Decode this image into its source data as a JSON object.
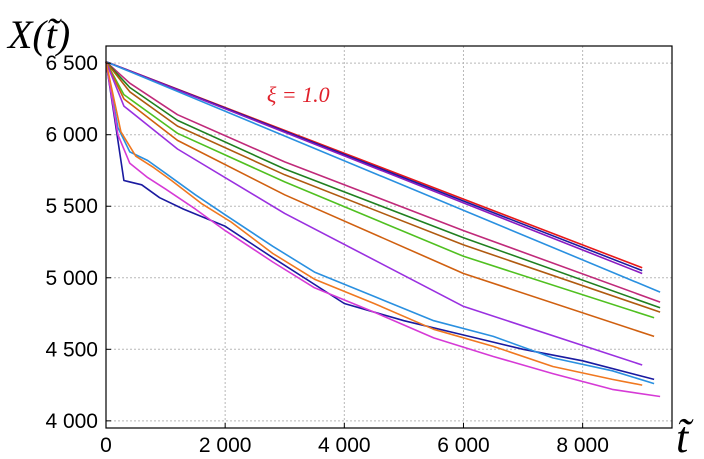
{
  "chart_data": {
    "type": "line",
    "title": "",
    "xlabel": "t̃",
    "ylabel": "X(t̃)",
    "xlim": [
      0,
      9500
    ],
    "ylim": [
      3950,
      6620
    ],
    "x_ticks": [
      0,
      2000,
      4000,
      6000,
      8000
    ],
    "x_tick_labels": [
      "0",
      "2 000",
      "4 000",
      "6 000",
      "8 000"
    ],
    "y_ticks": [
      4000,
      4500,
      5000,
      5500,
      6000,
      6500
    ],
    "y_tick_labels": [
      "4 000",
      "4 500",
      "5 000",
      "5 500",
      "6 000",
      "6 500"
    ],
    "grid": true,
    "legend": "none",
    "annotations": [
      {
        "text": "ξ = 1.0",
        "x": 2700,
        "y": 6230,
        "color": "#e0202a"
      }
    ],
    "series": [
      {
        "color": "#e81818",
        "x": [
          0,
          9000
        ],
        "y": [
          6510,
          5070
        ]
      },
      {
        "color": "#1a1aa0",
        "x": [
          0,
          9000
        ],
        "y": [
          6510,
          5050
        ]
      },
      {
        "color": "#8a1ac0",
        "x": [
          0,
          9000
        ],
        "y": [
          6510,
          5030
        ]
      },
      {
        "color": "#2a90e0",
        "x": [
          0,
          9300
        ],
        "y": [
          6510,
          4900
        ]
      },
      {
        "color": "#c02a7a",
        "x": [
          0,
          400,
          1200,
          3000,
          6000,
          9300
        ],
        "y": [
          6510,
          6360,
          6140,
          5810,
          5330,
          4830
        ]
      },
      {
        "color": "#208020",
        "x": [
          0,
          400,
          1200,
          3000,
          6000,
          9300
        ],
        "y": [
          6510,
          6330,
          6100,
          5760,
          5280,
          4790
        ]
      },
      {
        "color": "#b05a10",
        "x": [
          0,
          400,
          1200,
          3000,
          6000,
          9300
        ],
        "y": [
          6510,
          6300,
          6060,
          5720,
          5230,
          4760
        ]
      },
      {
        "color": "#50c020",
        "x": [
          0,
          300,
          1200,
          3000,
          6000,
          9200
        ],
        "y": [
          6510,
          6280,
          6010,
          5670,
          5150,
          4720
        ]
      },
      {
        "color": "#d06010",
        "x": [
          0,
          300,
          1200,
          3000,
          6000,
          9200
        ],
        "y": [
          6510,
          6250,
          5960,
          5580,
          5030,
          4590
        ]
      },
      {
        "color": "#9a30e0",
        "x": [
          0,
          300,
          1200,
          3000,
          6000,
          9000
        ],
        "y": [
          6510,
          6200,
          5900,
          5450,
          4800,
          4390
        ]
      },
      {
        "color": "#1a1aa0",
        "x": [
          0,
          150,
          300,
          600,
          900,
          1300,
          2000,
          2800,
          4000,
          5000,
          6000,
          7000,
          8000,
          9200
        ],
        "y": [
          6510,
          6100,
          5680,
          5650,
          5560,
          5480,
          5360,
          5140,
          4820,
          4700,
          4600,
          4500,
          4420,
          4290
        ]
      },
      {
        "color": "#2a90e0",
        "x": [
          0,
          200,
          400,
          700,
          1000,
          1500,
          2000,
          2800,
          3500,
          4500,
          5500,
          6500,
          7500,
          8500,
          9200
        ],
        "y": [
          6510,
          6050,
          5880,
          5820,
          5730,
          5580,
          5440,
          5220,
          5040,
          4870,
          4700,
          4590,
          4440,
          4350,
          4260
        ]
      },
      {
        "color": "#d63ad6",
        "x": [
          0,
          200,
          400,
          700,
          1000,
          1500,
          2000,
          2800,
          3500,
          4500,
          5500,
          6500,
          7500,
          8500,
          9300
        ],
        "y": [
          6510,
          6000,
          5800,
          5700,
          5620,
          5480,
          5330,
          5110,
          4930,
          4760,
          4580,
          4450,
          4330,
          4220,
          4170
        ]
      },
      {
        "color": "#f07820",
        "x": [
          0,
          250,
          500,
          800,
          1100,
          1600,
          2100,
          2800,
          3500,
          4500,
          5500,
          6500,
          7500,
          8500,
          9000
        ],
        "y": [
          6510,
          6020,
          5850,
          5770,
          5680,
          5520,
          5390,
          5170,
          4990,
          4820,
          4640,
          4520,
          4380,
          4290,
          4250
        ]
      }
    ]
  }
}
